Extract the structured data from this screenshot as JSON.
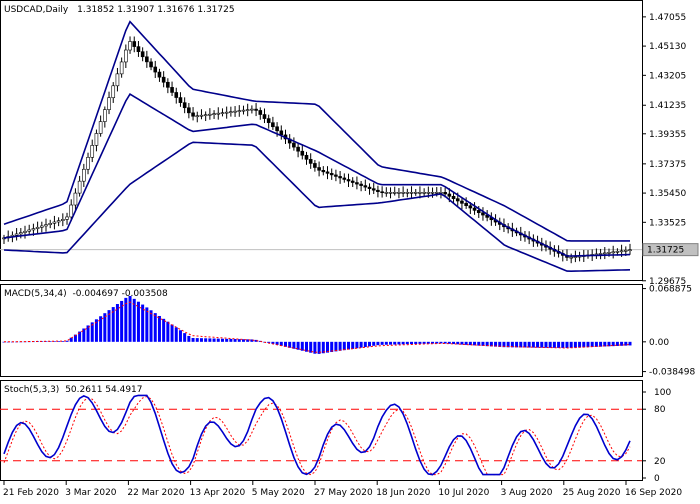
{
  "window": {
    "symbol": "USDCAD,Daily",
    "ohlc": "1.31852 1.31907 1.31676 1.31725"
  },
  "colors": {
    "background": "#ffffff",
    "frame": "#000000",
    "bands": "#00008b",
    "macd_bars": "#0000ff",
    "macd_signal": "#ff0000",
    "stoch_main": "#0000cd",
    "stoch_signal": "#ff0000",
    "levels": "#ff0000",
    "price_line": "#c0c0c0"
  },
  "chart_data": [
    {
      "type": "candlestick",
      "title": "USDCAD,Daily",
      "header_values": "1.31852 1.31907 1.31676 1.31725",
      "current_price": 1.31725,
      "current_price_label": "1.31725",
      "overlays": [
        "Bollinger Bands upper",
        "Bollinger Bands middle",
        "Bollinger Bands lower"
      ],
      "ylim": [
        1.2966,
        1.481
      ],
      "y_ticks": [
        "1.47055",
        "1.45130",
        "1.43205",
        "1.41235",
        "1.39355",
        "1.37375",
        "1.35450",
        "1.33525",
        "1.29675"
      ],
      "x_ticks": [
        "21 Feb 2020",
        "3 Mar 2020",
        "22 Mar 2020",
        "13 Apr 2020",
        "5 May 2020",
        "27 May 2020",
        "18 Jun 2020",
        "10 Jul 2020",
        "3 Aug 2020",
        "25 Aug 2020",
        "16 Sep 2020"
      ],
      "x": [
        "21 Feb 2020",
        "3 Mar 2020",
        "22 Mar 2020",
        "13 Apr 2020",
        "5 May 2020",
        "27 May 2020",
        "18 Jun 2020",
        "10 Jul 2020",
        "3 Aug 2020",
        "25 Aug 2020",
        "16 Sep 2020"
      ],
      "close": [
        1.325,
        1.338,
        1.455,
        1.405,
        1.41,
        1.37,
        1.355,
        1.355,
        1.332,
        1.312,
        1.3172
      ],
      "bands": {
        "upper": [
          1.334,
          1.348,
          1.468,
          1.423,
          1.415,
          1.413,
          1.372,
          1.365,
          1.346,
          1.323,
          1.323
        ],
        "middle": [
          1.325,
          1.33,
          1.42,
          1.395,
          1.4,
          1.382,
          1.36,
          1.36,
          1.333,
          1.313,
          1.314
        ],
        "lower": [
          1.317,
          1.315,
          1.36,
          1.388,
          1.386,
          1.345,
          1.348,
          1.354,
          1.32,
          1.303,
          1.304
        ]
      }
    },
    {
      "type": "bar",
      "title": "MACD(5,34,4) -0.004697 -0.003508",
      "indicator": "MACD(5,34,4)",
      "values_label": "-0.004697 -0.003508",
      "ylim": [
        -0.0455,
        0.0735
      ],
      "y_ticks": [
        "0.068875",
        "0.00",
        "-0.038498"
      ],
      "series": [
        {
          "values": [
            0.0,
            0.001,
            0.06,
            0.005,
            0.003,
            -0.016,
            -0.004,
            -0.002,
            -0.007,
            -0.008,
            -0.0047
          ]
        },
        {
          "values": [
            0.0,
            0.001,
            0.052,
            0.008,
            0.002,
            -0.014,
            -0.005,
            -0.002,
            -0.006,
            -0.008,
            -0.0035
          ]
        }
      ]
    },
    {
      "type": "line",
      "title": "Stoch(5,3,3) 50.2611 54.4917",
      "indicator": "Stoch(5,3,3)",
      "values_label": "50.2611 54.4917",
      "ylim": [
        0,
        100
      ],
      "y_ticks": [
        "100",
        "80",
        "20",
        "0"
      ],
      "levels": [
        80,
        20
      ],
      "series": [
        {
          "values": [
            28,
            60,
            88,
            20,
            80,
            20,
            70,
            22,
            20,
            45,
            50.2611
          ]
        },
        {
          "values": [
            30,
            55,
            85,
            25,
            75,
            25,
            65,
            25,
            22,
            40,
            54.4917
          ]
        }
      ]
    }
  ]
}
